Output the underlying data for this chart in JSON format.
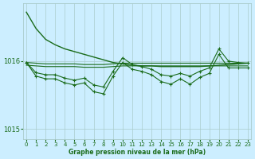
{
  "xlabel": "Graphe pression niveau de la mer (hPa)",
  "bg_color": "#cceeff",
  "grid_color": "#aacccc",
  "line_color": "#1a6b1a",
  "text_color": "#1a6b1a",
  "ylim": [
    1014.85,
    1016.85
  ],
  "xlim": [
    -0.3,
    23.3
  ],
  "yticks": [
    1015,
    1016
  ],
  "xticks": [
    0,
    1,
    2,
    3,
    4,
    5,
    6,
    7,
    8,
    9,
    10,
    11,
    12,
    13,
    14,
    15,
    16,
    17,
    18,
    19,
    20,
    21,
    22,
    23
  ],
  "series": [
    {
      "x": [
        0,
        1,
        2,
        3,
        4,
        5,
        6,
        7,
        8,
        9,
        10,
        11,
        12,
        13,
        14,
        15,
        16,
        17,
        18,
        19,
        20,
        21,
        22,
        23
      ],
      "y": [
        1016.72,
        1016.48,
        1016.32,
        1016.24,
        1016.18,
        1016.14,
        1016.1,
        1016.06,
        1016.02,
        1015.98,
        1015.96,
        1015.94,
        1015.93,
        1015.93,
        1015.92,
        1015.92,
        1015.92,
        1015.92,
        1015.92,
        1015.93,
        1015.94,
        1015.95,
        1015.96,
        1015.97
      ],
      "marker": false,
      "lw": 1.0
    },
    {
      "x": [
        0,
        1,
        2,
        3,
        4,
        5,
        6,
        7,
        8,
        9,
        10,
        11,
        12,
        13,
        14,
        15,
        16,
        17,
        18,
        19,
        20,
        21,
        22,
        23
      ],
      "y": [
        1015.98,
        1015.97,
        1015.96,
        1015.96,
        1015.96,
        1015.96,
        1015.95,
        1015.95,
        1015.95,
        1015.96,
        1015.97,
        1015.97,
        1015.97,
        1015.97,
        1015.97,
        1015.97,
        1015.97,
        1015.97,
        1015.97,
        1015.97,
        1015.97,
        1015.97,
        1015.97,
        1015.97
      ],
      "marker": false,
      "lw": 0.8
    },
    {
      "x": [
        0,
        1,
        2,
        3,
        4,
        5,
        6,
        7,
        8,
        9,
        10,
        11,
        12,
        13,
        14,
        15,
        16,
        17,
        18,
        19,
        20,
        21,
        22,
        23
      ],
      "y": [
        1015.94,
        1015.93,
        1015.92,
        1015.92,
        1015.92,
        1015.92,
        1015.91,
        1015.91,
        1015.91,
        1015.92,
        1015.93,
        1015.93,
        1015.93,
        1015.93,
        1015.93,
        1015.93,
        1015.93,
        1015.93,
        1015.93,
        1015.93,
        1015.93,
        1015.93,
        1015.93,
        1015.93
      ],
      "marker": false,
      "lw": 0.8
    },
    {
      "x": [
        0,
        1,
        2,
        3,
        4,
        5,
        6,
        7,
        8,
        9,
        10,
        11,
        12,
        13,
        14,
        15,
        16,
        17,
        18,
        19,
        20,
        21,
        22,
        23
      ],
      "y": [
        1015.98,
        1015.83,
        1015.8,
        1015.8,
        1015.75,
        1015.72,
        1015.75,
        1015.65,
        1015.62,
        1015.85,
        1016.05,
        1015.95,
        1015.92,
        1015.88,
        1015.8,
        1015.78,
        1015.82,
        1015.78,
        1015.85,
        1015.9,
        1016.18,
        1016.0,
        1015.98,
        1015.97
      ],
      "marker": true,
      "lw": 0.8
    },
    {
      "x": [
        0,
        1,
        2,
        3,
        4,
        5,
        6,
        7,
        8,
        9,
        10,
        11,
        12,
        13,
        14,
        15,
        16,
        17,
        18,
        19,
        20,
        21,
        22,
        23
      ],
      "y": [
        1015.98,
        1015.78,
        1015.74,
        1015.74,
        1015.68,
        1015.65,
        1015.68,
        1015.55,
        1015.52,
        1015.78,
        1015.98,
        1015.88,
        1015.85,
        1015.8,
        1015.7,
        1015.66,
        1015.74,
        1015.66,
        1015.76,
        1015.82,
        1016.1,
        1015.9,
        1015.9,
        1015.9
      ],
      "marker": true,
      "lw": 0.8
    }
  ]
}
